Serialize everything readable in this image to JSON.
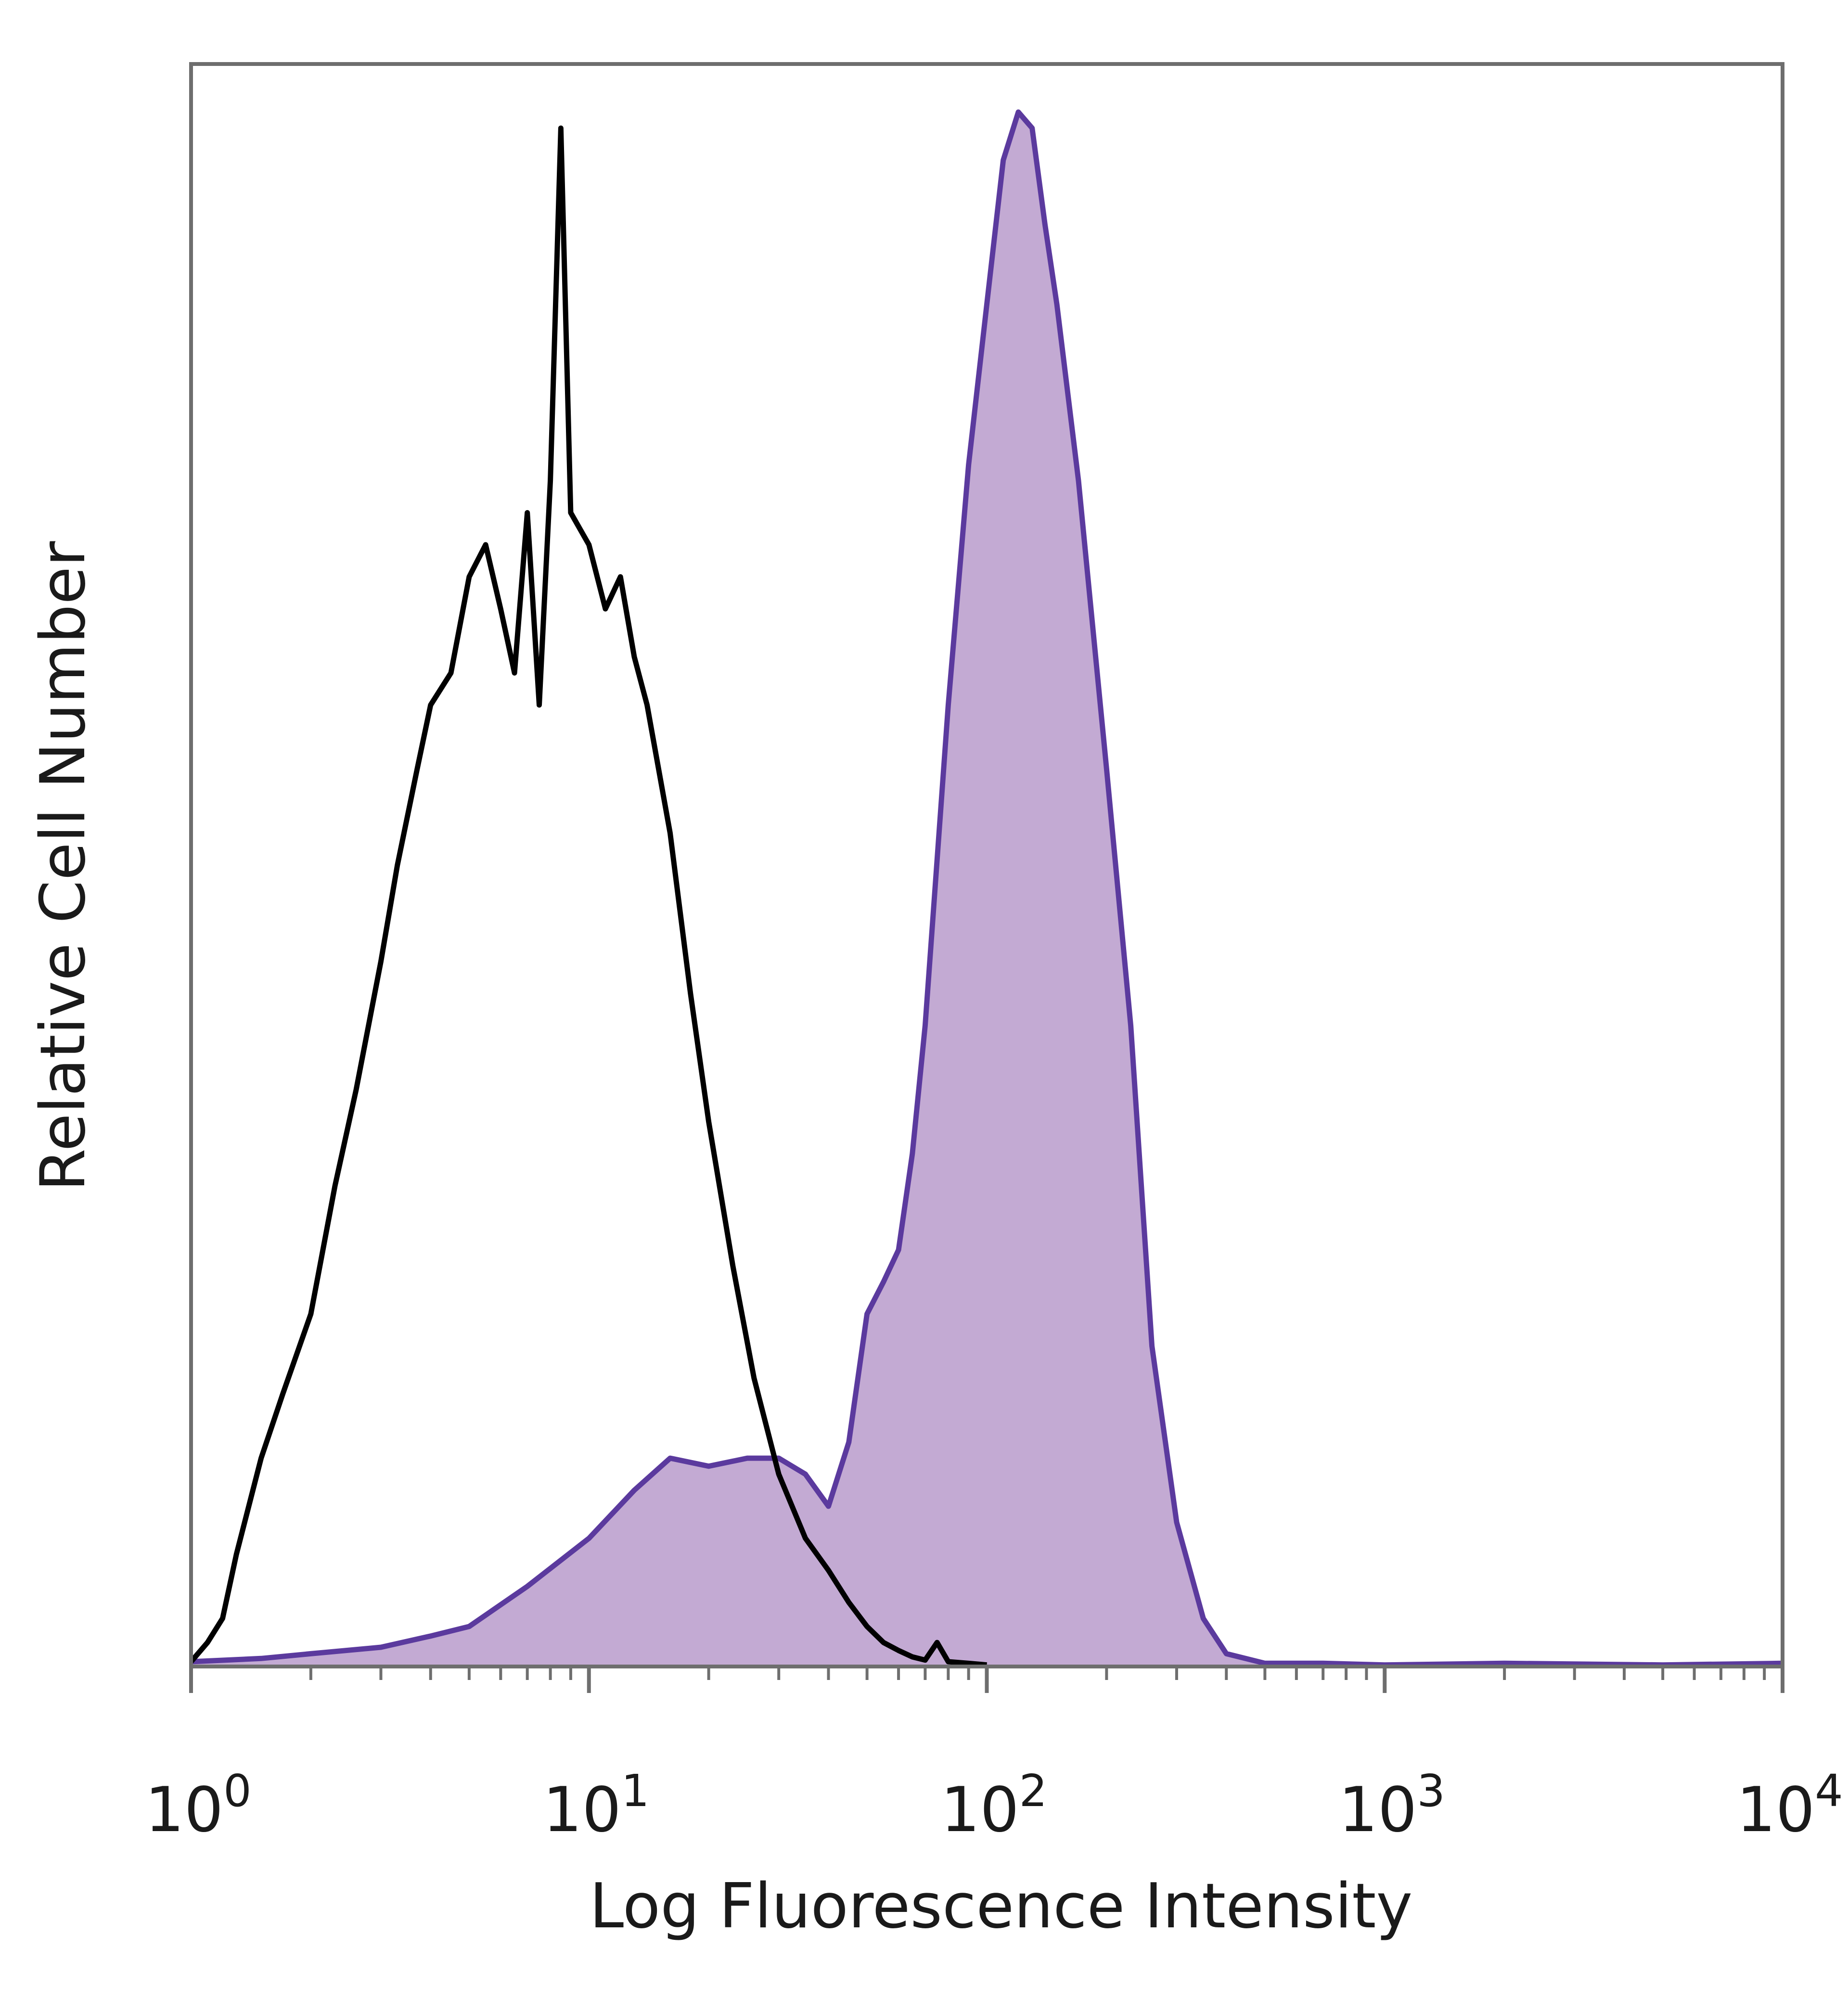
{
  "chart_data": {
    "type": "area",
    "title": "",
    "xlabel": "Log Fluorescence Intensity",
    "ylabel": "Relative Cell Number",
    "xscale": "log",
    "xlim": [
      1,
      10000
    ],
    "ylim": [
      0,
      100
    ],
    "grid": false,
    "legend": "none",
    "x_ticks": [
      {
        "base": "10",
        "exp": "0",
        "value": 1
      },
      {
        "base": "10",
        "exp": "1",
        "value": 10
      },
      {
        "base": "10",
        "exp": "2",
        "value": 100
      },
      {
        "base": "10",
        "exp": "3",
        "value": 1000
      },
      {
        "base": "10",
        "exp": "4",
        "value": 10000
      }
    ],
    "series": [
      {
        "style": "filled",
        "line_color": "#5b3a9e",
        "fill_color": "#c3aad3",
        "x": [
          1,
          1.5,
          2,
          3,
          4,
          5,
          7,
          10,
          13,
          16,
          20,
          25,
          30,
          35,
          40,
          45,
          50,
          55,
          60,
          65,
          70,
          80,
          90,
          100,
          110,
          120,
          130,
          140,
          150,
          170,
          200,
          230,
          260,
          300,
          350,
          400,
          500,
          700,
          1000,
          2000,
          5000,
          10000
        ],
        "y": [
          0.3,
          0.5,
          0.8,
          1.2,
          1.9,
          2.5,
          5,
          8,
          11,
          13,
          12.5,
          13,
          13,
          12,
          10,
          14,
          22,
          24,
          26,
          32,
          40,
          60,
          75,
          85,
          94,
          97,
          96,
          90,
          85,
          74,
          56,
          40,
          20,
          9,
          3,
          0.8,
          0.2,
          0.2,
          0.1,
          0.2,
          0.1,
          0.2
        ]
      },
      {
        "style": "line",
        "line_color": "#000000",
        "x": [
          1,
          1.1,
          1.2,
          1.3,
          1.5,
          1.7,
          2,
          2.3,
          2.6,
          3,
          3.3,
          3.7,
          4,
          4.5,
          5,
          5.5,
          6,
          6.5,
          7,
          7.5,
          8,
          8.5,
          9,
          10,
          11,
          12,
          13,
          14,
          16,
          18,
          20,
          23,
          26,
          30,
          35,
          40,
          45,
          50,
          55,
          60,
          65,
          70,
          75,
          80,
          90,
          100
        ],
        "y": [
          0.3,
          1.5,
          3,
          7,
          13,
          17,
          22,
          30,
          36,
          44,
          50,
          56,
          60,
          62,
          68,
          70,
          66,
          62,
          72,
          60,
          74,
          96,
          72,
          70,
          66,
          68,
          63,
          60,
          52,
          42,
          34,
          25,
          18,
          12,
          8,
          6,
          4,
          2.5,
          1.5,
          1,
          0.6,
          0.4,
          1.5,
          0.3,
          0.2,
          0.1
        ]
      }
    ]
  }
}
